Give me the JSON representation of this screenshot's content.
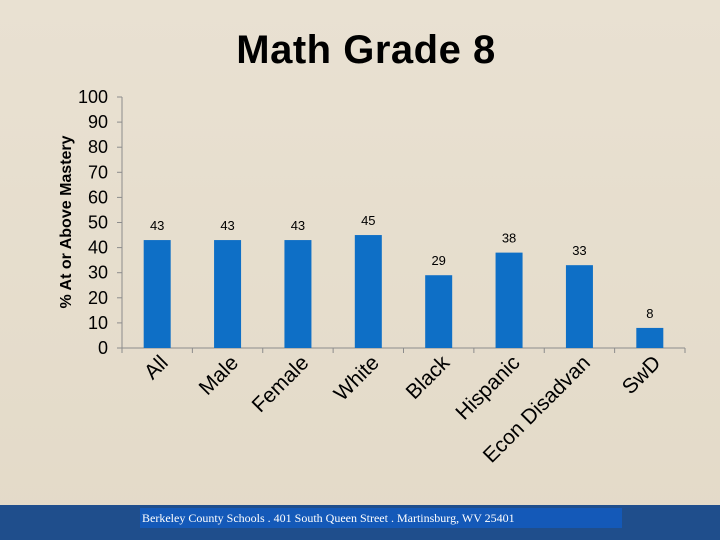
{
  "slide": {
    "title": "Math Grade 8",
    "footer": "Berkeley County Schools . 401 South Queen Street . Martinsburg, WV  25401"
  },
  "colors": {
    "bar": "#0e6fc6",
    "background": "#e6ddcc",
    "footer_band": "#1f4e8c",
    "footer_box": "#1459b8"
  },
  "chart_data": {
    "type": "bar",
    "title": "Math Grade 8",
    "ylabel": "% At or Above Mastery",
    "xlabel": "",
    "ylim": [
      0,
      100
    ],
    "yticks": [
      "0",
      "10",
      "20",
      "30",
      "40",
      "50",
      "60",
      "70",
      "80",
      "90",
      "100"
    ],
    "grid": false,
    "legend": "none",
    "categories": [
      "All",
      "Male",
      "Female",
      "White",
      "Black",
      "Hispanic",
      "Econ Disadvan",
      "SwD"
    ],
    "values": [
      43,
      43,
      43,
      45,
      29,
      38,
      33,
      8
    ],
    "data_labels": [
      "43",
      "43",
      "43",
      "45",
      "29",
      "38",
      "33",
      "8"
    ]
  }
}
